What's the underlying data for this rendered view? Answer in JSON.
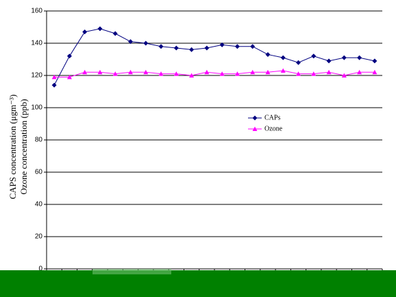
{
  "chart_data": {
    "type": "line",
    "ylabel": [
      "CAPS concentration (μgm⁻³)",
      "Ozone concentration (ppb)"
    ],
    "categories": [
      null,
      null,
      null,
      null,
      null,
      null,
      null,
      null,
      null,
      null,
      null,
      null,
      null,
      null,
      null,
      null,
      null,
      null,
      null,
      null,
      null,
      null
    ],
    "series": [
      {
        "name": "CAPs",
        "color": "#000080",
        "marker": "diamond",
        "values": [
          114,
          132,
          147,
          149,
          146,
          141,
          140,
          138,
          137,
          136,
          137,
          139,
          138,
          138,
          133,
          131,
          128,
          132,
          129,
          131,
          131,
          129
        ]
      },
      {
        "name": "Ozone",
        "color": "#ff00ff",
        "marker": "triangle",
        "values": [
          119,
          119,
          122,
          122,
          121,
          122,
          122,
          121,
          121,
          120,
          122,
          121,
          121,
          122,
          122,
          123,
          121,
          121,
          122,
          120,
          122,
          122
        ]
      }
    ],
    "ylim": [
      0,
      160
    ],
    "yticks": [
      0,
      20,
      40,
      60,
      80,
      100,
      120,
      140,
      160
    ],
    "grid": true
  }
}
